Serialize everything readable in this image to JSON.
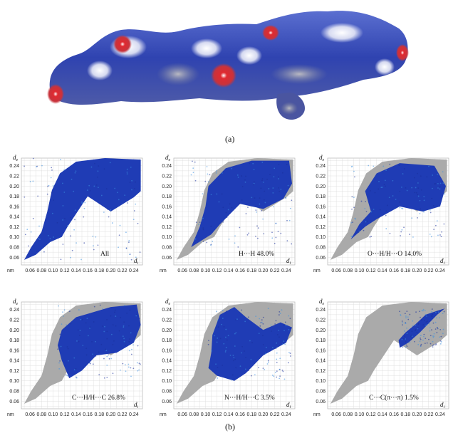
{
  "figure": {
    "caption_a": "(a)",
    "caption_b": "(b)"
  },
  "axes": {
    "x_name": "d",
    "x_sub": "i",
    "y_name": "d",
    "y_sub": "e",
    "unit": "nm",
    "x_ticks": [
      "0.06",
      "0.08",
      "0.10",
      "0.12",
      "0.14",
      "0.16",
      "0.18",
      "0.20",
      "0.22",
      "0.24"
    ],
    "y_ticks": [
      "0.06",
      "0.08",
      "0.10",
      "0.12",
      "0.14",
      "0.16",
      "0.18",
      "0.20",
      "0.22",
      "0.24"
    ],
    "x_range": [
      0.045,
      0.255
    ],
    "y_range": [
      0.045,
      0.255
    ]
  },
  "colors": {
    "full_plot": "#aaaaaa",
    "highlight": "#1f3cb5",
    "grid": "#d9d9d9",
    "surface_blue": "#2f43b0",
    "surface_red": "#d4202a"
  },
  "panels": [
    {
      "label": "All",
      "percent": null
    },
    {
      "label": "H···H 48.0%",
      "percent": 48.0
    },
    {
      "label": "O···H/H···O 14.0%",
      "percent": 14.0
    },
    {
      "label": "C···H/H···C 26.8%",
      "percent": 26.8
    },
    {
      "label": "N···H/H···C 3.5%",
      "percent": 3.5
    },
    {
      "label": "C···C(π···π) 1.5%",
      "percent": 1.5
    }
  ]
}
